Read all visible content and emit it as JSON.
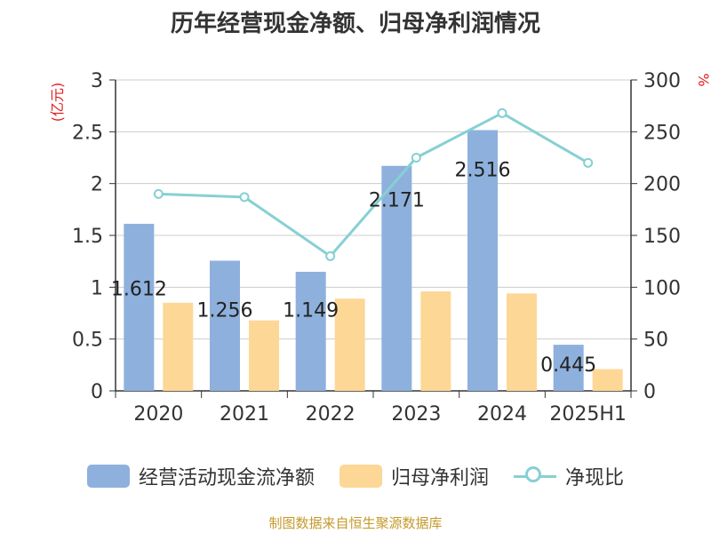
{
  "chart_data": {
    "type": "bar+line",
    "title": "历年经营现金净额、归母净利润情况",
    "categories": [
      "2020",
      "2021",
      "2022",
      "2023",
      "2024",
      "2025H1"
    ],
    "series": [
      {
        "name": "经营活动现金流净额",
        "type": "bar",
        "axis": "left",
        "values": [
          1.612,
          1.256,
          1.149,
          2.171,
          2.516,
          0.445
        ],
        "labels": [
          "1.612",
          "1.256",
          "1.149",
          "2.171",
          "2.516",
          "0.445"
        ],
        "color": "#8eb0dc"
      },
      {
        "name": "归母净利润",
        "type": "bar",
        "axis": "left",
        "values": [
          0.85,
          0.68,
          0.89,
          0.96,
          0.94,
          0.21
        ],
        "color": "#fdd796"
      },
      {
        "name": "净现比",
        "type": "line",
        "axis": "right",
        "values": [
          190,
          187,
          130,
          225,
          268,
          220
        ],
        "color": "#86d0d4"
      }
    ],
    "left_axis": {
      "label": "(亿元)",
      "min": 0,
      "max": 3,
      "ticks": [
        0,
        0.5,
        1,
        1.5,
        2,
        2.5,
        3
      ],
      "tick_labels": [
        "0",
        "0.5",
        "1",
        "1.5",
        "2",
        "2.5",
        "3"
      ]
    },
    "right_axis": {
      "label": "%",
      "min": 0,
      "max": 300,
      "ticks": [
        0,
        50,
        100,
        150,
        200,
        250,
        300
      ],
      "tick_labels": [
        "0",
        "50",
        "100",
        "150",
        "200",
        "250",
        "300"
      ]
    },
    "grid": true,
    "legend": "bottom"
  },
  "legend": {
    "items": [
      {
        "label": "经营活动现金流净额",
        "color": "#8eb0dc"
      },
      {
        "label": "归母净利润",
        "color": "#fdd796"
      },
      {
        "label": "净现比",
        "color": "#86d0d4"
      }
    ]
  },
  "source": {
    "text": "制图数据来自恒生聚源数据库",
    "color": "#c49a2c"
  },
  "colors": {
    "axis_label": "#e02020",
    "text": "#333333",
    "grid": "#cccccc"
  }
}
